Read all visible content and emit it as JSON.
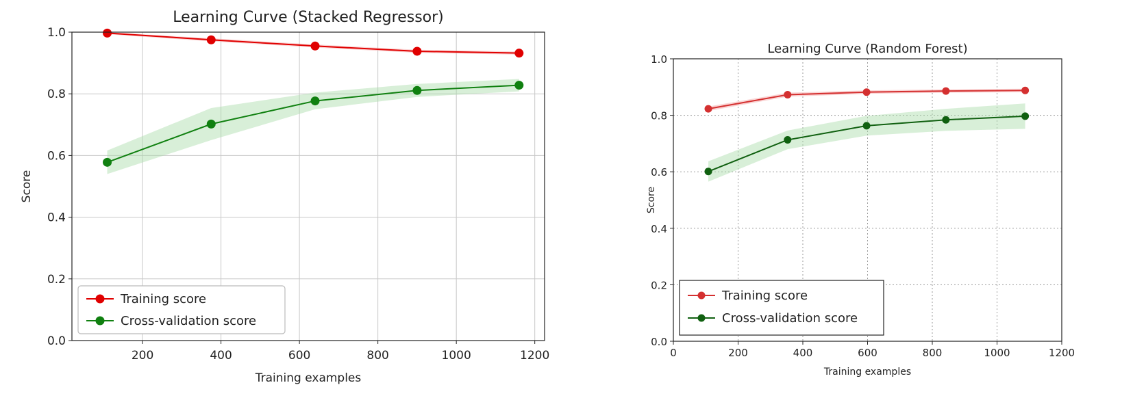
{
  "chart_data": [
    {
      "type": "line",
      "title": "Learning Curve (Stacked Regressor)",
      "xlabel": "Training examples",
      "ylabel": "Score",
      "xlim": [
        20,
        1225
      ],
      "ylim": [
        0.0,
        1.0
      ],
      "xticks": [
        200,
        400,
        600,
        800,
        1000,
        1200
      ],
      "yticks": [
        0.0,
        0.2,
        0.4,
        0.6,
        0.8,
        1.0
      ],
      "grid": true,
      "legend_position": "lower-left",
      "series": [
        {
          "name": "Training score",
          "color": "#e00000",
          "band_color": "#f4a0a0",
          "x": [
            110,
            375,
            640,
            900,
            1160
          ],
          "values": [
            0.997,
            0.975,
            0.955,
            0.938,
            0.932
          ],
          "lower": [
            0.993,
            0.97,
            0.95,
            0.933,
            0.927
          ],
          "upper": [
            1.0,
            0.98,
            0.96,
            0.943,
            0.937
          ]
        },
        {
          "name": "Cross-validation score",
          "color": "#108010",
          "band_color": "#a8dca8",
          "x": [
            110,
            375,
            640,
            900,
            1160
          ],
          "values": [
            0.578,
            0.702,
            0.777,
            0.811,
            0.828
          ],
          "lower": [
            0.54,
            0.65,
            0.75,
            0.79,
            0.808
          ],
          "upper": [
            0.616,
            0.754,
            0.804,
            0.832,
            0.848
          ]
        }
      ]
    },
    {
      "type": "line",
      "title": "Learning Curve (Random Forest)",
      "xlabel": "Training examples",
      "ylabel": "Score",
      "xlim": [
        0,
        1200
      ],
      "ylim": [
        0.0,
        1.0
      ],
      "xticks": [
        0,
        200,
        400,
        600,
        800,
        1000,
        1200
      ],
      "yticks": [
        0.0,
        0.2,
        0.4,
        0.6,
        0.8,
        1.0
      ],
      "grid": true,
      "legend_position": "lower-left",
      "series": [
        {
          "name": "Training score",
          "color": "#d43030",
          "band_color": "#f4a0a0",
          "x": [
            108,
            353,
            597,
            842,
            1087
          ],
          "values": [
            0.823,
            0.873,
            0.882,
            0.886,
            0.888
          ],
          "lower": [
            0.815,
            0.866,
            0.876,
            0.88,
            0.882
          ],
          "upper": [
            0.831,
            0.88,
            0.888,
            0.892,
            0.894
          ]
        },
        {
          "name": "Cross-validation score",
          "color": "#106010",
          "band_color": "#a8dca8",
          "x": [
            108,
            353,
            597,
            842,
            1087
          ],
          "values": [
            0.601,
            0.713,
            0.763,
            0.784,
            0.797
          ],
          "lower": [
            0.565,
            0.68,
            0.728,
            0.745,
            0.752
          ],
          "upper": [
            0.637,
            0.746,
            0.798,
            0.823,
            0.842
          ]
        }
      ]
    }
  ]
}
